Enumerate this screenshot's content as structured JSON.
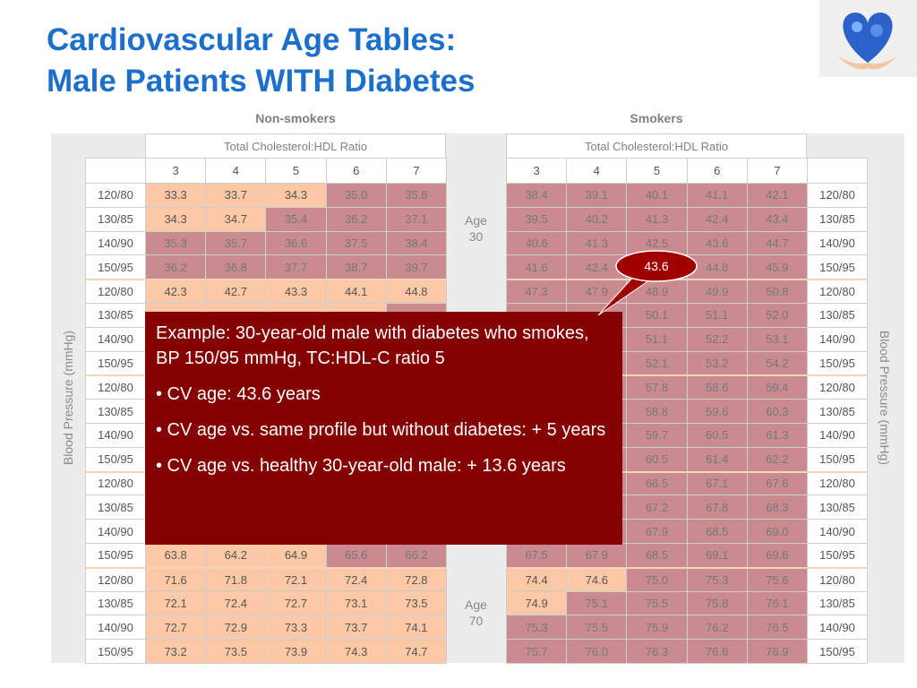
{
  "title": [
    "Cardiovascular Age Tables:",
    "Male Patients WITH Diabetes"
  ],
  "axis_label": "Blood Pressure (mmHg)",
  "non_smokers": {
    "heading": "Non-smokers",
    "subheading": "Total Cholesterol:HDL Ratio",
    "ratios": [
      "3",
      "4",
      "5",
      "6",
      "7"
    ],
    "rows": [
      {
        "bp": "120/80",
        "values": [
          "33.3",
          "33.7",
          "34.3",
          "35.0",
          "35.8"
        ]
      },
      {
        "bp": "130/85",
        "values": [
          "34.3",
          "34.7",
          "35.4",
          "36.2",
          "37.1"
        ]
      },
      {
        "bp": "140/90",
        "values": [
          "35.3",
          "35.7",
          "36.6",
          "37.5",
          "38.4"
        ]
      },
      {
        "bp": "150/95",
        "values": [
          "36.2",
          "36.8",
          "37.7",
          "38.7",
          "39.7"
        ]
      },
      {
        "bp": "120/80",
        "values": [
          "42.3",
          "42.7",
          "43.3",
          "44.1",
          "44.8"
        ]
      },
      {
        "bp": "130/85",
        "values": [
          null,
          null,
          null,
          null,
          null
        ]
      },
      {
        "bp": "140/90",
        "values": [
          null,
          null,
          null,
          null,
          null
        ]
      },
      {
        "bp": "150/95",
        "values": [
          null,
          null,
          null,
          null,
          null
        ]
      },
      {
        "bp": "120/80",
        "values": [
          null,
          null,
          null,
          null,
          null
        ]
      },
      {
        "bp": "130/85",
        "values": [
          null,
          null,
          null,
          null,
          null
        ]
      },
      {
        "bp": "140/90",
        "values": [
          null,
          null,
          null,
          null,
          null
        ]
      },
      {
        "bp": "150/95",
        "values": [
          null,
          null,
          null,
          null,
          null
        ]
      },
      {
        "bp": "120/80",
        "values": [
          null,
          null,
          null,
          null,
          null
        ]
      },
      {
        "bp": "130/85",
        "values": [
          null,
          null,
          null,
          null,
          null
        ]
      },
      {
        "bp": "140/90",
        "values": [
          null,
          null,
          null,
          null,
          null
        ]
      },
      {
        "bp": "150/95",
        "values": [
          "63.8",
          "64.2",
          "64.9",
          "65.6",
          "66.2"
        ]
      },
      {
        "bp": "120/80",
        "values": [
          "71.6",
          "71.8",
          "72.1",
          "72.4",
          "72.8"
        ]
      },
      {
        "bp": "130/85",
        "values": [
          "72.1",
          "72.4",
          "72.7",
          "73.1",
          "73.5"
        ]
      },
      {
        "bp": "140/90",
        "values": [
          "72.7",
          "72.9",
          "73.3",
          "73.7",
          "74.1"
        ]
      },
      {
        "bp": "150/95",
        "values": [
          "73.2",
          "73.5",
          "73.9",
          "74.3",
          "74.7"
        ]
      }
    ]
  },
  "smokers": {
    "heading": "Smokers",
    "subheading": "Total Cholesterol:HDL Ratio",
    "ratios": [
      "3",
      "4",
      "5",
      "6",
      "7"
    ],
    "rows": [
      {
        "bp": "120/80",
        "values": [
          "38.4",
          "39.1",
          "40.1",
          "41.1",
          "42.1"
        ]
      },
      {
        "bp": "130/85",
        "values": [
          "39.5",
          "40.2",
          "41.3",
          "42.4",
          "43.4"
        ]
      },
      {
        "bp": "140/90",
        "values": [
          "40.6",
          "41.3",
          "42.5",
          "43.6",
          "44.7"
        ]
      },
      {
        "bp": "150/95",
        "values": [
          "41.6",
          "42.4",
          null,
          "44.8",
          "45.9"
        ]
      },
      {
        "bp": "120/80",
        "values": [
          "47.3",
          "47.9",
          "48.9",
          "49.9",
          "50.8"
        ]
      },
      {
        "bp": "130/85",
        "values": [
          null,
          null,
          "50.1",
          "51.1",
          "52.0"
        ]
      },
      {
        "bp": "140/90",
        "values": [
          null,
          null,
          "51.1",
          "52.2",
          "53.1"
        ]
      },
      {
        "bp": "150/95",
        "values": [
          null,
          null,
          "52.1",
          "53.2",
          "54.2"
        ]
      },
      {
        "bp": "120/80",
        "values": [
          null,
          null,
          "57.8",
          "58.6",
          "59.4"
        ]
      },
      {
        "bp": "130/85",
        "values": [
          null,
          null,
          "58.8",
          "59.6",
          "60.3"
        ]
      },
      {
        "bp": "140/90",
        "values": [
          null,
          null,
          "59.7",
          "60.5",
          "61.3"
        ]
      },
      {
        "bp": "150/95",
        "values": [
          null,
          null,
          "60.5",
          "61.4",
          "62.2"
        ]
      },
      {
        "bp": "120/80",
        "values": [
          null,
          null,
          "66.5",
          "67.1",
          "67.6"
        ]
      },
      {
        "bp": "130/85",
        "values": [
          null,
          null,
          "67.2",
          "67.8",
          "68.3"
        ]
      },
      {
        "bp": "140/90",
        "values": [
          null,
          null,
          "67.9",
          "68.5",
          "69.0"
        ]
      },
      {
        "bp": "150/95",
        "values": [
          "67.5",
          "67.9",
          "68.5",
          "69.1",
          "69.6"
        ]
      },
      {
        "bp": "120/80",
        "values": [
          "74.4",
          "74.6",
          "75.0",
          "75.3",
          "75.6"
        ]
      },
      {
        "bp": "130/85",
        "values": [
          "74.9",
          "75.1",
          "75.5",
          "75.8",
          "76.1"
        ]
      },
      {
        "bp": "140/90",
        "values": [
          "75.3",
          "75.5",
          "75.9",
          "76.2",
          "76.5"
        ]
      },
      {
        "bp": "150/95",
        "values": [
          "75.7",
          "76.0",
          "76.3",
          "76.6",
          "76.9"
        ]
      }
    ]
  },
  "age_groups": [
    {
      "word": "Age",
      "age": "30"
    },
    null,
    null,
    null,
    {
      "word": "Age",
      "age": "70"
    }
  ],
  "callout": "43.6",
  "example": [
    "Example: 30-year-old male with diabetes who smokes, BP 150/95 mmHg, TC:HDL-C ratio 5",
    "• CV age: 43.6 years",
    "• CV age vs. same profile but without diabetes: + 5 years",
    "• CV age vs. healthy 30-year-old male: + 13.6 years"
  ]
}
